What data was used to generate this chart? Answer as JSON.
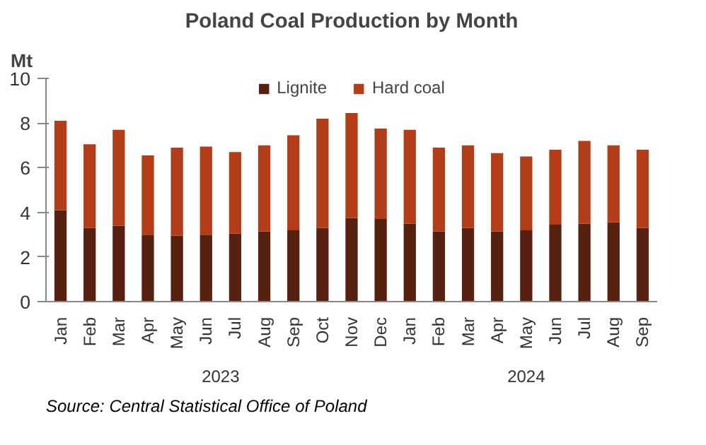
{
  "chart_data": {
    "type": "bar",
    "stacked": true,
    "title": "Poland Coal Production by Month",
    "ylabel": "Mt",
    "categories": [
      "Jan",
      "Feb",
      "Mar",
      "Apr",
      "May",
      "Jun",
      "Jul",
      "Aug",
      "Sep",
      "Oct",
      "Nov",
      "Dec",
      "Jan",
      "Feb",
      "Mar",
      "Apr",
      "May",
      "Jun",
      "Jul",
      "Aug",
      "Sep"
    ],
    "series": [
      {
        "name": "Lignite",
        "color": "#58200e",
        "values": [
          4.1,
          3.3,
          3.4,
          3.0,
          2.95,
          3.0,
          3.05,
          3.15,
          3.2,
          3.3,
          3.75,
          3.7,
          3.5,
          3.15,
          3.3,
          3.15,
          3.2,
          3.45,
          3.5,
          3.55,
          3.3
        ]
      },
      {
        "name": "Hard coal",
        "color": "#b33c19",
        "values": [
          4.0,
          3.75,
          4.3,
          3.55,
          3.95,
          3.95,
          3.65,
          3.85,
          4.25,
          4.9,
          4.7,
          4.05,
          4.2,
          3.75,
          3.7,
          3.5,
          3.3,
          3.35,
          3.7,
          3.45,
          3.5
        ]
      }
    ],
    "ylim": [
      0,
      10
    ],
    "yticks": [
      0,
      2,
      4,
      6,
      8,
      10
    ],
    "grid": false,
    "legend": "top",
    "annotations": [
      "2023",
      "2024",
      "Source:  Central Statistical Office of Poland"
    ]
  }
}
